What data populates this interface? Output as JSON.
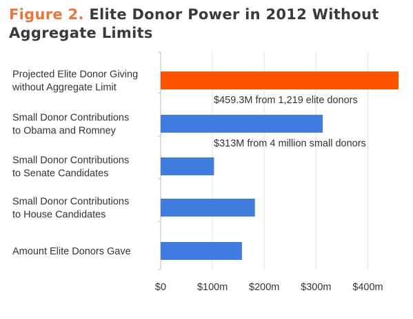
{
  "title_prefix": "Figure 2.",
  "title_text": "Elite Donor Power in 2012 Without Aggregate Limits",
  "chart_data": {
    "type": "bar",
    "orientation": "horizontal",
    "categories": [
      [
        "Projected Elite Donor Giving",
        "without Aggregate Limit"
      ],
      [
        "Small Donor Contributions",
        "to Obama and Romney"
      ],
      [
        "Small Donor Contributions",
        "to Senate Candidates"
      ],
      [
        "Small Donor Contributions",
        "to House Candidates"
      ],
      [
        "Amount Elite Donors Gave"
      ]
    ],
    "values": [
      459.3,
      313,
      103,
      182,
      157
    ],
    "units": "$ millions",
    "colors": [
      "#fd5200",
      "#3f7de0",
      "#3f7de0",
      "#3f7de0",
      "#3f7de0"
    ],
    "xlim": [
      0,
      459.3
    ],
    "xticks": [
      0,
      100,
      200,
      300,
      400
    ],
    "xtick_labels": [
      "$0",
      "$100m",
      "$200m",
      "$300m",
      "$400m"
    ],
    "grid": true,
    "annotations": [
      {
        "bar_index": 0,
        "text": "$459.3M from 1,219 elite donors"
      },
      {
        "bar_index": 1,
        "text": "$313M from 4 million small donors"
      }
    ]
  }
}
